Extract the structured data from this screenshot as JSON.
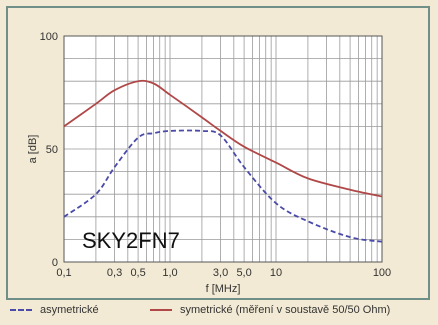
{
  "chart_data": {
    "type": "line",
    "annotation": "SKY2FN7",
    "xlabel": "f [MHz]",
    "ylabel": "a [dB]",
    "x_scale": "log",
    "xlim": [
      0.1,
      100
    ],
    "ylim": [
      0,
      100
    ],
    "xticks": [
      {
        "v": 0.1,
        "label": "0,1"
      },
      {
        "v": 0.3,
        "label": "0,3"
      },
      {
        "v": 0.5,
        "label": "0,5"
      },
      {
        "v": 1.0,
        "label": "1,0"
      },
      {
        "v": 3.0,
        "label": "3,0"
      },
      {
        "v": 5.0,
        "label": "5,0"
      },
      {
        "v": 10,
        "label": "10"
      },
      {
        "v": 100,
        "label": "100"
      }
    ],
    "yticks": [
      {
        "v": 0,
        "label": "0"
      },
      {
        "v": 50,
        "label": "50"
      },
      {
        "v": 100,
        "label": "100"
      }
    ],
    "grid": true,
    "series": [
      {
        "name": "asymetrické",
        "color": "#4a4aa8",
        "style": "dashed",
        "x": [
          0.1,
          0.2,
          0.3,
          0.5,
          0.7,
          1.0,
          2.0,
          3.0,
          5.0,
          10,
          20,
          50,
          100
        ],
        "y": [
          20,
          30,
          42,
          55,
          57,
          58,
          58,
          56,
          42,
          26,
          18,
          11,
          9
        ]
      },
      {
        "name": "symetrické (měření v soustavě 50/50 Ohm)",
        "color": "#b04848",
        "style": "solid",
        "x": [
          0.1,
          0.2,
          0.3,
          0.5,
          0.7,
          1.0,
          2.0,
          3.0,
          5.0,
          10,
          20,
          50,
          100
        ],
        "y": [
          60,
          70,
          76,
          80,
          79,
          74,
          64,
          58,
          51,
          44,
          37,
          32,
          29
        ]
      }
    ]
  },
  "legend": {
    "label_asym": "asymetrické",
    "label_sym": "symetrické (měření v soustavě 50/50 Ohm)"
  },
  "colors": {
    "background": "#f2ead4",
    "plot_area": "#ffffff",
    "grid": "#9a9a9a",
    "border": "#6f8f88"
  }
}
